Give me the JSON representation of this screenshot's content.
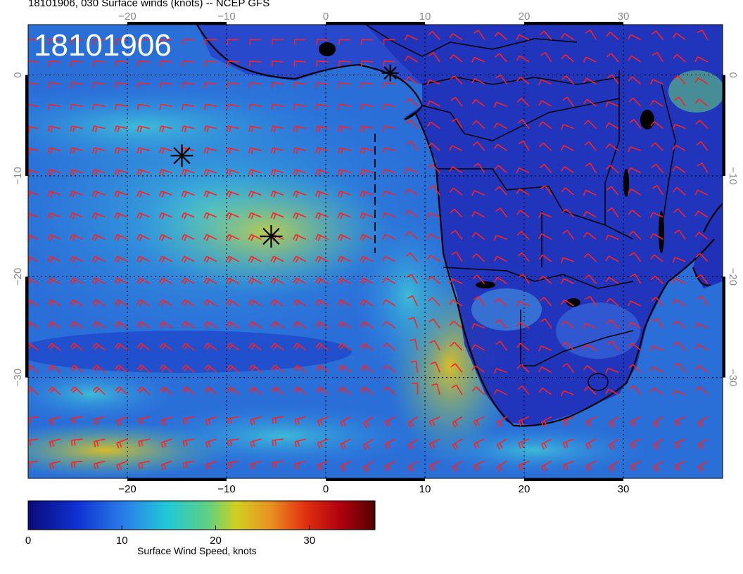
{
  "header": {
    "title": "18101906, 030 Surface winds (knots) -- NCEP GFS",
    "stamp": "18101906"
  },
  "map": {
    "lon_range": [
      -30,
      40
    ],
    "lat_range": [
      -40,
      5
    ],
    "lon_ticks": [
      "−20",
      "−10",
      "0",
      "10",
      "20",
      "30"
    ],
    "lat_ticks": [
      "0",
      "−10",
      "−20",
      "−30"
    ],
    "grid": "dotted",
    "colors": {
      "background_low": "#1a2fb8",
      "ocean_mid": "#2f7fe0",
      "wind_high": "#c8c83a",
      "barb": "#ff2020",
      "coast": "#000000"
    },
    "markers": [
      {
        "name": "star-marker-1",
        "lon": -14.5,
        "lat": -8.0
      },
      {
        "name": "star-marker-2",
        "lon": -5.5,
        "lat": -16.0
      },
      {
        "name": "star-marker-3",
        "lon": 6.5,
        "lat": 0.2
      }
    ]
  },
  "colorbar": {
    "min": 0,
    "max": 37,
    "tick_labels": [
      "0",
      "10",
      "20",
      "30"
    ],
    "tick_values": [
      0,
      10,
      20,
      30
    ],
    "label": "Surface Wind Speed, knots"
  }
}
